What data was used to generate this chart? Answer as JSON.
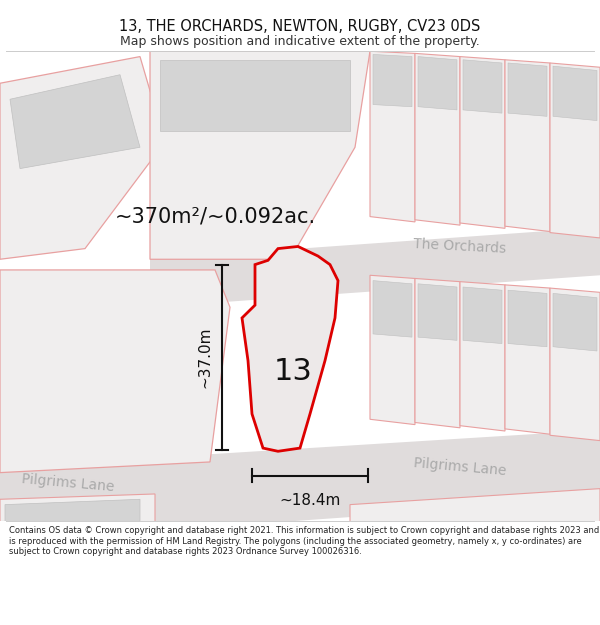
{
  "title": "13, THE ORCHARDS, NEWTON, RUGBY, CV23 0DS",
  "subtitle": "Map shows position and indicative extent of the property.",
  "area_text": "~370m²/~0.092ac.",
  "label_number": "13",
  "dim_width": "~18.4m",
  "dim_height": "~37.0m",
  "road_label_top": "The Orchards",
  "road_label_bottom_left": "Pilgrims Lane",
  "road_label_bottom_right": "Pilgrims Lane",
  "footer": "Contains OS data © Crown copyright and database right 2021. This information is subject to Crown copyright and database rights 2023 and is reproduced with the permission of HM Land Registry. The polygons (including the associated geometry, namely x, y co-ordinates) are subject to Crown copyright and database rights 2023 Ordnance Survey 100026316.",
  "bg_color": "#ffffff",
  "map_bg": "#f5f3f3",
  "building_color": "#d4d4d4",
  "plot_outline_color": "#e8a0a0",
  "property_outline": "#dd0000",
  "property_fill": "#ede9e9",
  "road_fill": "#e0dcdc",
  "dim_line_color": "#111111",
  "road_text_color": "#aaaaaa",
  "title_color": "#111111",
  "subtitle_color": "#333333",
  "footer_color": "#222222",
  "divider_color": "#cccccc"
}
